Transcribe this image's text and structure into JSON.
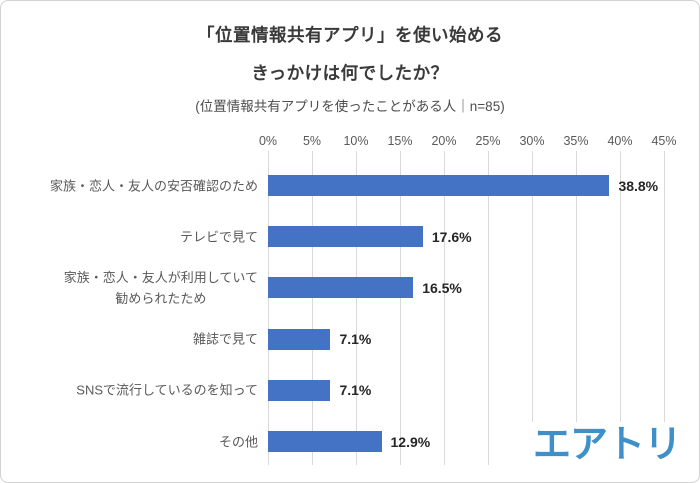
{
  "header": {
    "title_line1": "「位置情報共有アプリ」を使い始める",
    "title_line2": "きっかけは何でしたか？",
    "subtitle": "(位置情報共有アプリを使ったことがある人｜n=85)"
  },
  "chart_data": {
    "type": "bar",
    "orientation": "horizontal",
    "title": "「位置情報共有アプリ」を使い始めるきっかけは何でしたか？",
    "subtitle": "位置情報共有アプリを使ったことがある人｜n=85",
    "categories": [
      "家族・恋人・友人の安否確認のため",
      "テレビで見て",
      "家族・恋人・友人が利用していて\n勧められたため",
      "雑誌で見て",
      "SNSで流行しているのを知って",
      "その他"
    ],
    "values": [
      38.8,
      17.6,
      16.5,
      7.1,
      7.1,
      12.9
    ],
    "value_labels": [
      "38.8%",
      "17.6%",
      "16.5%",
      "7.1%",
      "7.1%",
      "12.9%"
    ],
    "x_ticks": [
      "0%",
      "5%",
      "10%",
      "15%",
      "20%",
      "25%",
      "30%",
      "35%",
      "40%",
      "45%"
    ],
    "x_tick_values": [
      0,
      5,
      10,
      15,
      20,
      25,
      30,
      35,
      40,
      45
    ],
    "xlim": [
      0,
      45
    ],
    "grid": true,
    "legend": false,
    "bar_color": "#4472c4"
  },
  "branding": {
    "logo_text": "エアトリ"
  },
  "colors": {
    "bar": "#4472c4",
    "gridline": "#d9d9d9",
    "title_text": "#3a3a3a",
    "category_text": "#595959",
    "value_text": "#262626",
    "logo_blue": "#3f8fc9"
  }
}
